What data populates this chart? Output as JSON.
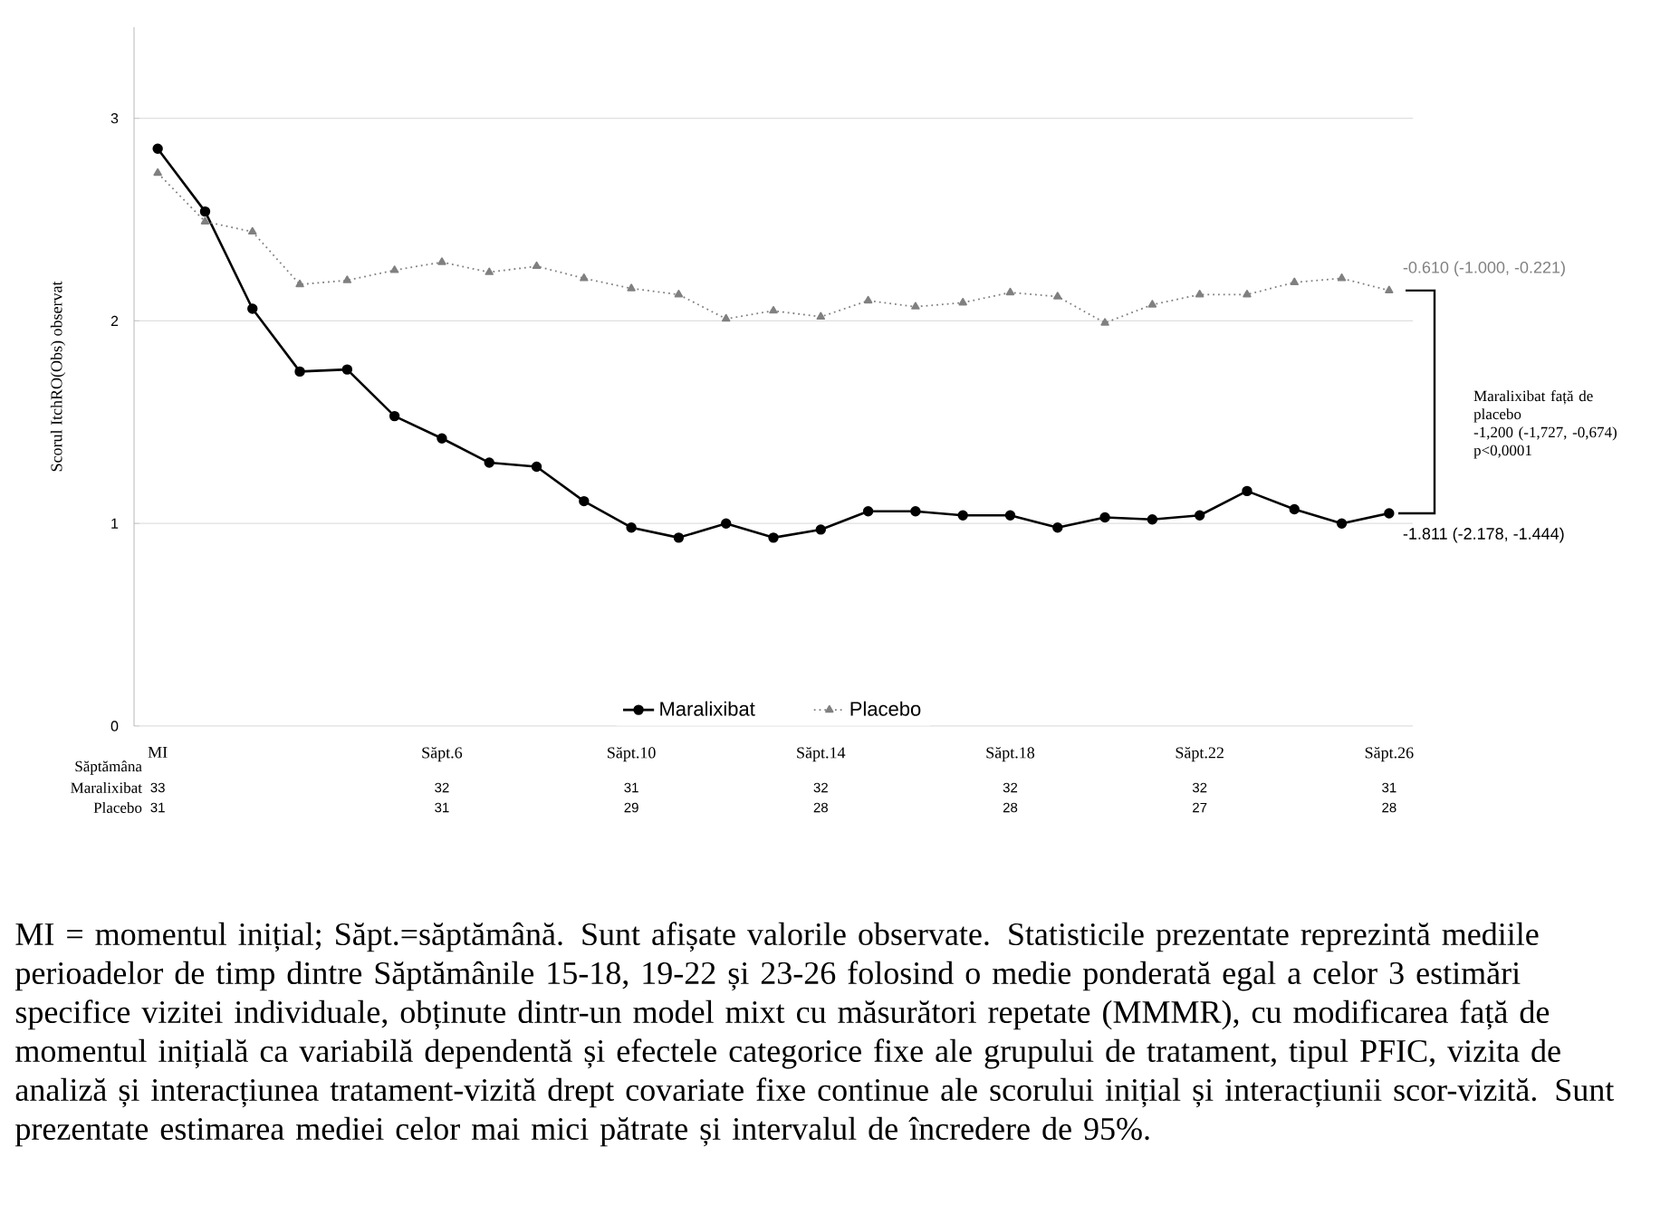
{
  "chart_data": {
    "type": "line",
    "ylabel": "Scorul ItchRO(Obs) observat",
    "xlabel": "Săptămâna",
    "categories": [
      "MI",
      null,
      null,
      null,
      null,
      null,
      "Săpt.6",
      null,
      null,
      null,
      "Săpt.10",
      null,
      null,
      null,
      "Săpt.14",
      null,
      null,
      null,
      "Săpt.18",
      null,
      null,
      null,
      "Săpt.22",
      null,
      null,
      null,
      "Săpt.26"
    ],
    "series": [
      {
        "name": "Maralixibat",
        "color": "#000000",
        "marker": "circle",
        "line_style": "solid",
        "values": [
          2.85,
          2.54,
          2.06,
          1.75,
          1.76,
          1.53,
          1.42,
          1.3,
          1.28,
          1.11,
          0.98,
          0.93,
          1.0,
          0.93,
          0.97,
          1.06,
          1.06,
          1.04,
          1.04,
          0.98,
          1.03,
          1.02,
          1.04,
          1.16,
          1.07,
          1.0,
          1.05
        ]
      },
      {
        "name": "Placebo",
        "color": "#808080",
        "marker": "triangle",
        "line_style": "dotted",
        "values": [
          2.73,
          2.49,
          2.44,
          2.18,
          2.2,
          2.25,
          2.29,
          2.24,
          2.27,
          2.21,
          2.16,
          2.13,
          2.01,
          2.05,
          2.02,
          2.1,
          2.07,
          2.09,
          2.14,
          2.12,
          1.99,
          2.08,
          2.13,
          2.13,
          2.19,
          2.21,
          2.15
        ]
      }
    ],
    "ylim": [
      0,
      3.45
    ],
    "yticks": [
      0,
      1,
      2,
      3
    ],
    "grid": "y",
    "legend": "bottom",
    "annotations": [
      {
        "text": "-0.610 (-1.000, -0.221)",
        "x": "Săpt.26",
        "y": 2.15
      },
      {
        "text": "-1.811 (-2.178, -1.444)",
        "x": "Săpt.26",
        "y": 1.05
      },
      "Maralixibat față de placebo",
      "-1,200 (-1,727, -0,674)",
      "p<0,0001",
      "Maralixibat",
      "33",
      "32",
      "31",
      "32",
      "32",
      "32",
      "31",
      "Placebo",
      "31",
      "31",
      "29",
      "28",
      "28",
      "27",
      "28",
      "MI = momentul inițial; Săpt.=săptămână. Sunt afișate valorile observate. Statisticile prezentate reprezintă mediile perioadelor de timp dintre Săptămânile 15-18, 19-22 și 23-26 folosind o medie ponderată egal a celor 3 estimări specifice vizitei individuale, obținute dintr-un model mixt cu măsurători repetate (MMMR), cu modificarea față de momentul inițială ca variabilă dependentă și efectele categorice fixe ale grupului de tratament, tipul PFIC, vizita de analiză și interacțiunea tratament-vizită drept covariate fixe continue ale scorului inițial și interacțiunii scor-vizită. Sunt prezentate estimarea mediei celor mai mici pătrate și intervalul de încredere de 95%."
    ]
  }
}
